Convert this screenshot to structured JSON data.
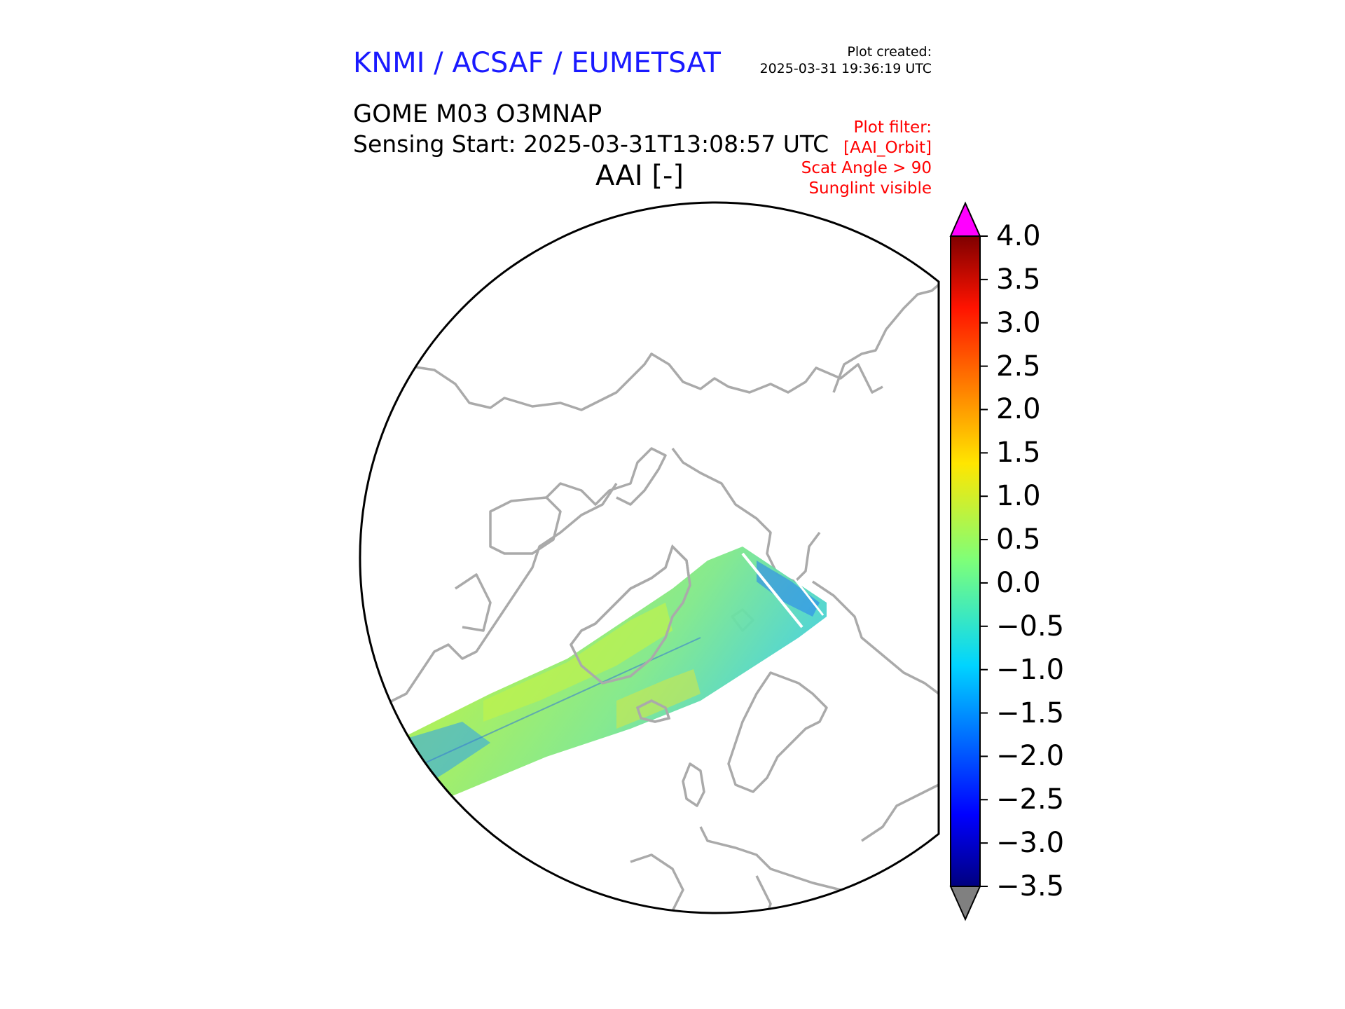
{
  "header": {
    "org": "KNMI / ACSAF / EUMETSAT",
    "created_label": "Plot created:",
    "created_value": "2025-03-31 19:36:19 UTC",
    "product": "GOME M03 O3MNAP",
    "sensing_start": "Sensing Start: 2025-03-31T13:08:57 UTC",
    "plot_title": "AAI [-]"
  },
  "filter": {
    "label": "Plot filter:",
    "orbit": "[AAI_Orbit]",
    "scat": "Scat Angle > 90",
    "sunglint": "Sunglint visible"
  },
  "colorbar": {
    "min": -3.5,
    "max": 4.0,
    "ticks": [
      "4.0",
      "3.5",
      "3.0",
      "2.5",
      "2.0",
      "1.5",
      "1.0",
      "0.5",
      "0.0",
      "−0.5",
      "−1.0",
      "−1.5",
      "−2.0",
      "−2.5",
      "−3.0",
      "−3.5"
    ],
    "over_color": "#ff00ff",
    "under_color": "#808080"
  },
  "colors": {
    "coastline": "#aaaaaa",
    "swath_main": "#55e6a6",
    "swath_yellow": "#bff24c",
    "swath_blue": "#2aa0f0"
  }
}
